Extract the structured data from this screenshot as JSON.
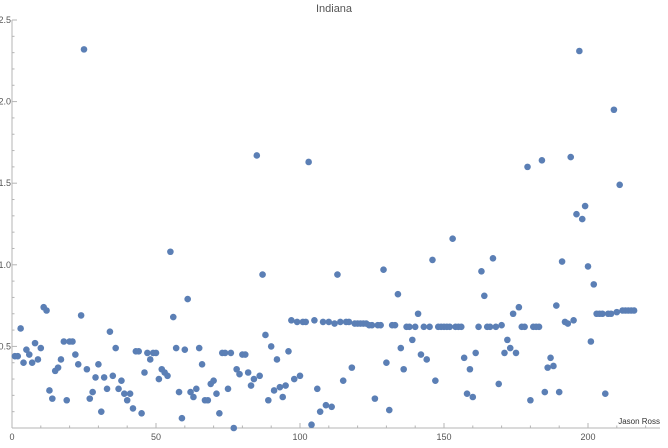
{
  "chart_data": {
    "type": "scatter",
    "title": "Indiana",
    "annotation": "Jason Ross",
    "xlabel": "",
    "ylabel": "",
    "xlim": [
      0,
      225
    ],
    "ylim": [
      0,
      2.5
    ],
    "x_ticks": [
      0,
      50,
      100,
      150,
      200
    ],
    "y_ticks": [
      0.5,
      1.0,
      1.5,
      2.0,
      2.5
    ],
    "y_tick_labels": [
      "0.5",
      "1.0",
      "1.5",
      "2.0",
      "2.5"
    ],
    "grid": false,
    "point_color": "#5b7fb5",
    "axis_color": "#b5b5b5",
    "text_color": "#555555",
    "series": [
      {
        "points": [
          [
            1,
            0.44
          ],
          [
            2,
            0.44
          ],
          [
            3,
            0.61
          ],
          [
            4,
            0.4
          ],
          [
            5,
            0.48
          ],
          [
            6,
            0.45
          ],
          [
            7,
            0.4
          ],
          [
            8,
            0.52
          ],
          [
            9,
            0.42
          ],
          [
            10,
            0.49
          ],
          [
            11,
            0.74
          ],
          [
            12,
            0.72
          ],
          [
            13,
            0.23
          ],
          [
            14,
            0.18
          ],
          [
            15,
            0.35
          ],
          [
            16,
            0.37
          ],
          [
            17,
            0.42
          ],
          [
            18,
            0.53
          ],
          [
            19,
            0.17
          ],
          [
            20,
            0.53
          ],
          [
            21,
            0.53
          ],
          [
            22,
            0.45
          ],
          [
            23,
            0.39
          ],
          [
            24,
            0.69
          ],
          [
            25,
            2.32
          ],
          [
            26,
            0.36
          ],
          [
            27,
            0.18
          ],
          [
            28,
            0.22
          ],
          [
            29,
            0.31
          ],
          [
            30,
            0.39
          ],
          [
            31,
            0.1
          ],
          [
            32,
            0.31
          ],
          [
            33,
            0.24
          ],
          [
            34,
            0.59
          ],
          [
            35,
            0.32
          ],
          [
            36,
            0.49
          ],
          [
            37,
            0.24
          ],
          [
            38,
            0.29
          ],
          [
            39,
            0.21
          ],
          [
            40,
            0.17
          ],
          [
            41,
            0.21
          ],
          [
            42,
            0.12
          ],
          [
            43,
            0.47
          ],
          [
            44,
            0.47
          ],
          [
            45,
            0.09
          ],
          [
            46,
            0.34
          ],
          [
            47,
            0.46
          ],
          [
            48,
            0.42
          ],
          [
            49,
            0.46
          ],
          [
            50,
            0.46
          ],
          [
            51,
            0.3
          ],
          [
            52,
            0.36
          ],
          [
            53,
            0.34
          ],
          [
            54,
            0.32
          ],
          [
            55,
            1.08
          ],
          [
            56,
            0.68
          ],
          [
            57,
            0.49
          ],
          [
            58,
            0.22
          ],
          [
            59,
            0.06
          ],
          [
            60,
            0.48
          ],
          [
            61,
            0.79
          ],
          [
            62,
            0.22
          ],
          [
            63,
            0.19
          ],
          [
            64,
            0.24
          ],
          [
            65,
            0.49
          ],
          [
            66,
            0.39
          ],
          [
            67,
            0.17
          ],
          [
            68,
            0.17
          ],
          [
            69,
            0.27
          ],
          [
            70,
            0.29
          ],
          [
            71,
            0.21
          ],
          [
            72,
            0.09
          ],
          [
            73,
            0.46
          ],
          [
            74,
            0.46
          ],
          [
            75,
            0.24
          ],
          [
            76,
            0.46
          ],
          [
            77,
            0.0
          ],
          [
            78,
            0.36
          ],
          [
            79,
            0.33
          ],
          [
            80,
            0.45
          ],
          [
            81,
            0.45
          ],
          [
            82,
            0.34
          ],
          [
            83,
            0.26
          ],
          [
            84,
            0.3
          ],
          [
            85,
            1.67
          ],
          [
            86,
            0.32
          ],
          [
            87,
            0.94
          ],
          [
            88,
            0.57
          ],
          [
            89,
            0.17
          ],
          [
            90,
            0.5
          ],
          [
            91,
            0.23
          ],
          [
            92,
            0.42
          ],
          [
            93,
            0.25
          ],
          [
            94,
            0.19
          ],
          [
            95,
            0.26
          ],
          [
            96,
            0.47
          ],
          [
            97,
            0.66
          ],
          [
            98,
            0.3
          ],
          [
            99,
            0.65
          ],
          [
            100,
            0.32
          ],
          [
            101,
            0.65
          ],
          [
            102,
            0.65
          ],
          [
            103,
            1.63
          ],
          [
            104,
            0.02
          ],
          [
            105,
            0.66
          ],
          [
            106,
            0.24
          ],
          [
            107,
            0.1
          ],
          [
            108,
            0.65
          ],
          [
            109,
            0.14
          ],
          [
            110,
            0.65
          ],
          [
            111,
            0.13
          ],
          [
            112,
            0.64
          ],
          [
            113,
            0.94
          ],
          [
            114,
            0.65
          ],
          [
            115,
            0.29
          ],
          [
            116,
            0.65
          ],
          [
            117,
            0.65
          ],
          [
            118,
            0.37
          ],
          [
            119,
            0.64
          ],
          [
            120,
            0.64
          ],
          [
            121,
            0.64
          ],
          [
            122,
            0.64
          ],
          [
            123,
            0.64
          ],
          [
            124,
            0.63
          ],
          [
            125,
            0.63
          ],
          [
            126,
            0.18
          ],
          [
            127,
            0.63
          ],
          [
            128,
            0.63
          ],
          [
            129,
            0.97
          ],
          [
            130,
            0.4
          ],
          [
            131,
            0.11
          ],
          [
            132,
            0.63
          ],
          [
            133,
            0.63
          ],
          [
            134,
            0.82
          ],
          [
            135,
            0.49
          ],
          [
            136,
            0.36
          ],
          [
            137,
            0.62
          ],
          [
            138,
            0.62
          ],
          [
            139,
            0.54
          ],
          [
            140,
            0.62
          ],
          [
            141,
            0.7
          ],
          [
            142,
            0.45
          ],
          [
            143,
            0.62
          ],
          [
            144,
            0.42
          ],
          [
            145,
            0.62
          ],
          [
            146,
            1.03
          ],
          [
            147,
            0.29
          ],
          [
            148,
            0.62
          ],
          [
            149,
            0.62
          ],
          [
            150,
            0.62
          ],
          [
            151,
            0.62
          ],
          [
            152,
            0.62
          ],
          [
            153,
            1.16
          ],
          [
            154,
            0.62
          ],
          [
            155,
            0.62
          ],
          [
            156,
            0.62
          ],
          [
            157,
            0.43
          ],
          [
            158,
            0.21
          ],
          [
            159,
            0.36
          ],
          [
            160,
            0.19
          ],
          [
            161,
            0.46
          ],
          [
            162,
            0.62
          ],
          [
            163,
            0.96
          ],
          [
            164,
            0.81
          ],
          [
            165,
            0.62
          ],
          [
            166,
            0.62
          ],
          [
            167,
            1.04
          ],
          [
            168,
            0.62
          ],
          [
            169,
            0.27
          ],
          [
            170,
            0.63
          ],
          [
            171,
            0.46
          ],
          [
            172,
            0.54
          ],
          [
            173,
            0.49
          ],
          [
            174,
            0.7
          ],
          [
            175,
            0.46
          ],
          [
            176,
            0.74
          ],
          [
            177,
            0.62
          ],
          [
            178,
            0.62
          ],
          [
            179,
            1.6
          ],
          [
            180,
            0.17
          ],
          [
            181,
            0.62
          ],
          [
            182,
            0.62
          ],
          [
            183,
            0.62
          ],
          [
            184,
            1.64
          ],
          [
            185,
            0.22
          ],
          [
            186,
            0.37
          ],
          [
            187,
            0.43
          ],
          [
            188,
            0.38
          ],
          [
            189,
            0.75
          ],
          [
            190,
            0.22
          ],
          [
            191,
            1.02
          ],
          [
            192,
            0.65
          ],
          [
            193,
            0.64
          ],
          [
            194,
            1.66
          ],
          [
            195,
            0.66
          ],
          [
            196,
            1.31
          ],
          [
            197,
            2.31
          ],
          [
            198,
            1.28
          ],
          [
            199,
            1.36
          ],
          [
            200,
            0.99
          ],
          [
            201,
            0.53
          ],
          [
            202,
            0.88
          ],
          [
            203,
            0.7
          ],
          [
            204,
            0.7
          ],
          [
            205,
            0.7
          ],
          [
            206,
            0.21
          ],
          [
            207,
            0.7
          ],
          [
            208,
            0.7
          ],
          [
            209,
            1.95
          ],
          [
            210,
            0.71
          ],
          [
            211,
            1.49
          ],
          [
            212,
            0.72
          ],
          [
            213,
            0.72
          ],
          [
            214,
            0.72
          ],
          [
            215,
            0.72
          ],
          [
            216,
            0.72
          ]
        ]
      }
    ]
  }
}
